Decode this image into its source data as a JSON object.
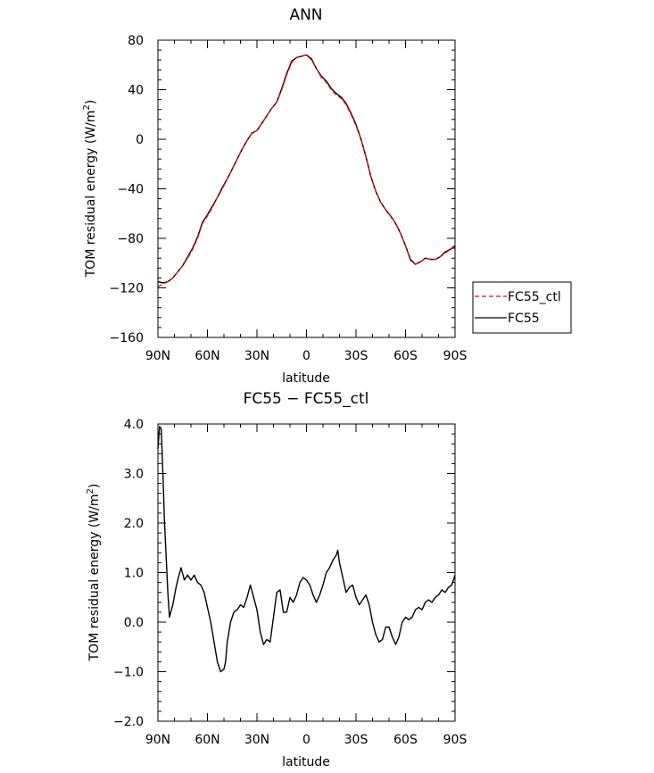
{
  "chart_data": [
    {
      "type": "line",
      "title": "ANN",
      "xlabel": "latitude",
      "ylabel": "TOM residual energy (W/m",
      "ylabel_sup": "2",
      "ylabel_close": ")",
      "xlim": [
        90,
        -90
      ],
      "ylim": [
        -160,
        80
      ],
      "xticks": [
        90,
        60,
        30,
        0,
        -30,
        -60,
        -90
      ],
      "xticklabels": [
        "90N",
        "60N",
        "30N",
        "0",
        "30S",
        "60S",
        "90S"
      ],
      "yticks": [
        -160,
        -120,
        -80,
        -40,
        0,
        40,
        80
      ],
      "yticklabels": [
        "−160",
        "−120",
        "−80",
        "−40",
        "0",
        "40",
        "80"
      ],
      "legend": "outside-right",
      "series": [
        {
          "name": "FC55_ctl",
          "color": "#dd1111",
          "dash": "dashed",
          "x": [
            90,
            87,
            84,
            81,
            78,
            75,
            72,
            69,
            66,
            63,
            60,
            57,
            54,
            51,
            48,
            45,
            42,
            39,
            36,
            33,
            30,
            27,
            24,
            21,
            18,
            15,
            12,
            9,
            6,
            3,
            0,
            -3,
            -6,
            -9,
            -12,
            -15,
            -18,
            -21,
            -24,
            -27,
            -30,
            -33,
            -36,
            -39,
            -42,
            -45,
            -48,
            -51,
            -54,
            -57,
            -60,
            -63,
            -66,
            -69,
            -72,
            -75,
            -78,
            -81,
            -84,
            -87,
            -90
          ],
          "y": [
            -119,
            -117,
            -115,
            -112,
            -107,
            -102,
            -96,
            -89,
            -80,
            -68,
            -62,
            -55,
            -47,
            -40,
            -32,
            -24,
            -16,
            -8,
            -1,
            5,
            7,
            13,
            19,
            25,
            30,
            40,
            52,
            62,
            66,
            67,
            68,
            64,
            57,
            50,
            46,
            40,
            36,
            33,
            28,
            20,
            11,
            0,
            -14,
            -30,
            -42,
            -51,
            -57,
            -62,
            -68,
            -76,
            -86,
            -98,
            -101,
            -99,
            -96,
            -97,
            -97,
            -95,
            -92,
            -89,
            -87
          ]
        },
        {
          "name": "FC55",
          "color": "#000000",
          "dash": "solid",
          "x": [
            90,
            87,
            84,
            81,
            78,
            75,
            72,
            69,
            66,
            63,
            60,
            57,
            54,
            51,
            48,
            45,
            42,
            39,
            36,
            33,
            30,
            27,
            24,
            21,
            18,
            15,
            12,
            9,
            6,
            3,
            0,
            -3,
            -6,
            -9,
            -12,
            -15,
            -18,
            -21,
            -24,
            -27,
            -30,
            -33,
            -36,
            -39,
            -42,
            -45,
            -48,
            -51,
            -54,
            -57,
            -60,
            -63,
            -66,
            -69,
            -72,
            -75,
            -78,
            -81,
            -84,
            -87,
            -90
          ],
          "y": [
            -115,
            -116,
            -115,
            -112,
            -107,
            -102,
            -95,
            -88,
            -79,
            -67,
            -61,
            -54,
            -47,
            -39,
            -32,
            -24,
            -16,
            -8,
            -1,
            5,
            7,
            13,
            19,
            25,
            30,
            41,
            53,
            63,
            66,
            67,
            68,
            65,
            57,
            51,
            47,
            41,
            37,
            34,
            29,
            21,
            12,
            0,
            -14,
            -30,
            -42,
            -51,
            -57,
            -62,
            -68,
            -76,
            -86,
            -97,
            -101,
            -99,
            -96,
            -97,
            -97,
            -95,
            -91,
            -89,
            -86
          ]
        }
      ]
    },
    {
      "type": "line",
      "title": "FC55 − FC55_ctl",
      "xlabel": "latitude",
      "ylabel": "TOM residual energy (W/m",
      "ylabel_sup": "2",
      "ylabel_close": ")",
      "xlim": [
        90,
        -90
      ],
      "ylim": [
        -2.0,
        4.0
      ],
      "xticks": [
        90,
        60,
        30,
        0,
        -30,
        -60,
        -90
      ],
      "xticklabels": [
        "90N",
        "60N",
        "30N",
        "0",
        "30S",
        "60S",
        "90S"
      ],
      "yticks": [
        -2.0,
        -1.0,
        0.0,
        1.0,
        2.0,
        3.0,
        4.0
      ],
      "yticklabels": [
        "−2.0",
        "−1.0",
        "0.0",
        "1.0",
        "2.0",
        "3.0",
        "4.0"
      ],
      "series": [
        {
          "color": "#000000",
          "x": [
            90,
            89,
            88,
            87,
            86,
            85,
            84,
            83,
            81,
            79,
            78,
            76,
            74,
            72,
            70,
            68,
            66,
            64,
            62,
            60,
            58,
            56,
            54,
            52,
            50,
            49,
            48,
            46,
            44,
            42,
            40,
            38,
            36,
            34,
            32,
            30,
            28,
            26,
            25,
            24,
            22,
            20,
            18,
            16,
            14,
            12,
            10,
            8,
            6,
            4,
            2,
            0,
            -2,
            -4,
            -6,
            -8,
            -10,
            -12,
            -14,
            -16,
            -18,
            -19,
            -20,
            -22,
            -24,
            -26,
            -28,
            -30,
            -32,
            -34,
            -36,
            -38,
            -40,
            -42,
            -44,
            -46,
            -48,
            -50,
            -52,
            -54,
            -56,
            -58,
            -60,
            -62,
            -64,
            -66,
            -68,
            -70,
            -72,
            -74,
            -76,
            -78,
            -80,
            -82,
            -84,
            -86,
            -88,
            -90
          ],
          "y": [
            3.5,
            3.95,
            3.9,
            3.0,
            2.0,
            1.3,
            0.6,
            0.1,
            0.35,
            0.7,
            0.85,
            1.1,
            0.85,
            0.95,
            0.85,
            0.95,
            0.8,
            0.75,
            0.6,
            0.3,
            0.0,
            -0.4,
            -0.8,
            -1.0,
            -0.95,
            -0.8,
            -0.4,
            0.0,
            0.2,
            0.25,
            0.35,
            0.3,
            0.5,
            0.75,
            0.5,
            0.25,
            -0.2,
            -0.45,
            -0.4,
            -0.35,
            -0.4,
            0.1,
            0.6,
            0.65,
            0.2,
            0.2,
            0.5,
            0.4,
            0.55,
            0.8,
            0.9,
            0.85,
            0.75,
            0.55,
            0.4,
            0.55,
            0.75,
            1.0,
            1.1,
            1.25,
            1.35,
            1.45,
            1.2,
            0.9,
            0.6,
            0.7,
            0.75,
            0.5,
            0.35,
            0.45,
            0.55,
            0.35,
            0.0,
            -0.25,
            -0.4,
            -0.35,
            -0.1,
            -0.1,
            -0.3,
            -0.45,
            -0.3,
            0.0,
            0.1,
            0.05,
            0.1,
            0.25,
            0.3,
            0.25,
            0.4,
            0.45,
            0.4,
            0.5,
            0.55,
            0.65,
            0.6,
            0.7,
            0.75,
            0.95
          ]
        }
      ]
    }
  ],
  "legend_items": [
    "FC55_ctl",
    "FC55"
  ]
}
